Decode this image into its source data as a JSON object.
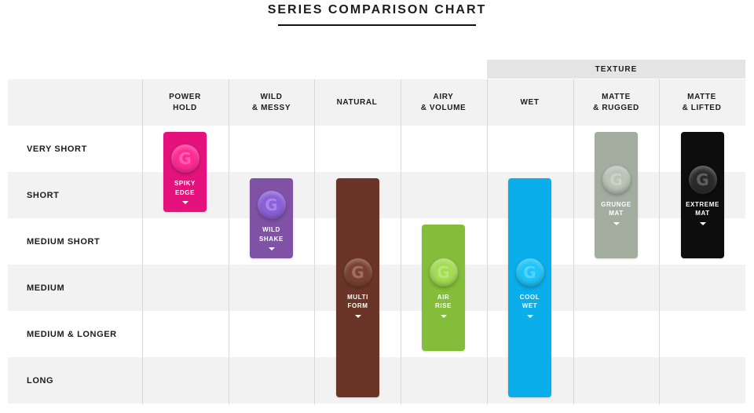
{
  "title": "SERIES COMPARISON CHART",
  "texture_group_label": "TEXTURE",
  "columns": [
    "POWER\nHOLD",
    "WILD\n& MESSY",
    "NATURAL",
    "AIRY\n& VOLUME",
    "WET",
    "MATTE\n& RUGGED",
    "MATTE\n& LIFTED"
  ],
  "rows": [
    "VERY SHORT",
    "SHORT",
    "MEDIUM SHORT",
    "MEDIUM",
    "MEDIUM & LONGER",
    "LONG"
  ],
  "products": [
    {
      "name": "SPIKY\nEDGE",
      "column": "POWER HOLD",
      "hair_length_from": "VERY SHORT",
      "hair_length_to": "SHORT",
      "color": "#e5127d",
      "jar_color": "#ff2a95",
      "jar_glyph": "G",
      "icon": "chevron-down-icon"
    },
    {
      "name": "WILD\nSHAKE",
      "column": "WILD & MESSY",
      "hair_length_from": "SHORT",
      "hair_length_to": "MEDIUM SHORT",
      "color": "#7f52a6",
      "jar_color": "#8a60d8",
      "jar_glyph": "G",
      "icon": "chevron-down-icon"
    },
    {
      "name": "MULTI\nFORM",
      "column": "NATURAL",
      "hair_length_from": "SHORT",
      "hair_length_to": "LONG",
      "color": "#6a3526",
      "jar_color": "#7a4030",
      "jar_glyph": "G",
      "icon": "chevron-down-icon"
    },
    {
      "name": "AIR\nRISE",
      "column": "AIRY & VOLUME",
      "hair_length_from": "MEDIUM SHORT",
      "hair_length_to": "MEDIUM & LONGER",
      "color": "#83bd3a",
      "jar_color": "#a4dc54",
      "jar_glyph": "G",
      "icon": "chevron-down-icon"
    },
    {
      "name": "COOL\nWET",
      "column": "WET",
      "hair_length_from": "SHORT",
      "hair_length_to": "LONG",
      "color": "#0aaeea",
      "jar_color": "#1ec4f8",
      "jar_glyph": "G",
      "icon": "chevron-down-icon"
    },
    {
      "name": "GRUNGE\nMAT",
      "column": "MATTE & RUGGED",
      "hair_length_from": "VERY SHORT",
      "hair_length_to": "MEDIUM SHORT",
      "color": "#a2ada0",
      "jar_color": "#b8c4b5",
      "jar_glyph": "G",
      "icon": "chevron-down-icon"
    },
    {
      "name": "EXTREME\nMAT",
      "column": "MATTE & LIFTED",
      "hair_length_from": "VERY SHORT",
      "hair_length_to": "MEDIUM SHORT",
      "color": "#0d0d0d",
      "jar_color": "#2a2a2a",
      "jar_glyph": "G",
      "icon": "chevron-down-icon"
    }
  ]
}
